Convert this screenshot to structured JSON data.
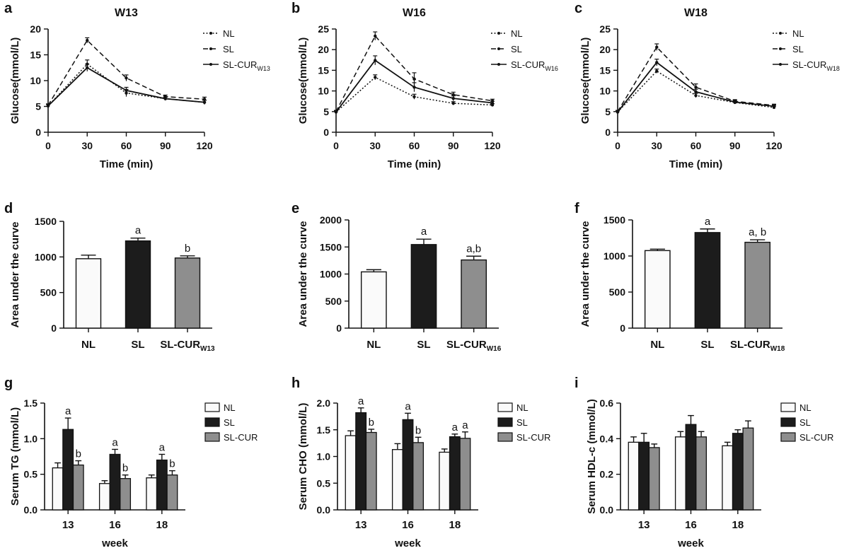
{
  "chart_data": [
    {
      "id": "a",
      "type": "line",
      "title": "W13",
      "xlabel": "Time (min)",
      "ylabel": "Glucose(mmol/L)",
      "x": [
        0,
        30,
        60,
        90,
        120
      ],
      "xlim": [
        0,
        120
      ],
      "ylim": [
        0,
        20
      ],
      "xticks": [
        "0",
        "30",
        "60",
        "90",
        "120"
      ],
      "yticks": [
        "0",
        "5",
        "10",
        "15",
        "20"
      ],
      "series": [
        {
          "name": "NL",
          "sub": "",
          "style": "dotted",
          "values": [
            5.1,
            13.2,
            7.6,
            6.5,
            5.8
          ],
          "err": [
            0.3,
            0.8,
            0.7,
            0.3,
            0.4
          ]
        },
        {
          "name": "SL",
          "sub": "",
          "style": "dashed",
          "values": [
            5.2,
            17.8,
            10.5,
            6.9,
            6.4
          ],
          "err": [
            0.3,
            0.5,
            0.6,
            0.3,
            0.4
          ]
        },
        {
          "name": "SL-CUR",
          "sub": "W13",
          "style": "solid",
          "values": [
            5.1,
            12.5,
            8.1,
            6.5,
            5.8
          ],
          "err": [
            0.3,
            0.7,
            0.6,
            0.3,
            0.4
          ]
        }
      ]
    },
    {
      "id": "b",
      "type": "line",
      "title": "W16",
      "xlabel": "Time (min)",
      "ylabel": "Glucose(mmol/L)",
      "x": [
        0,
        30,
        60,
        90,
        120
      ],
      "xlim": [
        0,
        120
      ],
      "ylim": [
        0,
        25
      ],
      "xticks": [
        "0",
        "30",
        "60",
        "90",
        "120"
      ],
      "yticks": [
        "0",
        "5",
        "10",
        "15",
        "20",
        "25"
      ],
      "series": [
        {
          "name": "NL",
          "sub": "",
          "style": "dotted",
          "values": [
            4.9,
            13.3,
            8.6,
            7.0,
            6.6
          ],
          "err": [
            0.3,
            0.6,
            0.6,
            0.4,
            0.3
          ]
        },
        {
          "name": "SL",
          "sub": "",
          "style": "dashed",
          "values": [
            5.0,
            23.3,
            12.9,
            9.1,
            7.6
          ],
          "err": [
            0.3,
            1.0,
            1.5,
            0.6,
            0.4
          ]
        },
        {
          "name": "SL-CUR",
          "sub": "W16",
          "style": "solid",
          "values": [
            4.9,
            17.4,
            10.9,
            8.2,
            7.1
          ],
          "err": [
            0.3,
            1.1,
            1.1,
            0.6,
            0.4
          ]
        }
      ]
    },
    {
      "id": "c",
      "type": "line",
      "title": "W18",
      "xlabel": "Time (min)",
      "ylabel": "Glucose(mmol/L)",
      "x": [
        0,
        30,
        60,
        90,
        120
      ],
      "xlim": [
        0,
        120
      ],
      "ylim": [
        0,
        25
      ],
      "xticks": [
        "0",
        "30",
        "60",
        "90",
        "120"
      ],
      "yticks": [
        "0",
        "5",
        "10",
        "15",
        "20",
        "25"
      ],
      "series": [
        {
          "name": "NL",
          "sub": "",
          "style": "dotted",
          "values": [
            4.9,
            14.8,
            8.9,
            7.2,
            6.0
          ],
          "err": [
            0.3,
            0.5,
            0.5,
            0.3,
            0.3
          ]
        },
        {
          "name": "SL",
          "sub": "",
          "style": "dashed",
          "values": [
            5.0,
            20.6,
            10.9,
            7.5,
            6.5
          ],
          "err": [
            0.3,
            0.8,
            0.8,
            0.4,
            0.3
          ]
        },
        {
          "name": "SL-CUR",
          "sub": "W18",
          "style": "solid",
          "values": [
            4.9,
            16.9,
            9.8,
            7.3,
            6.3
          ],
          "err": [
            0.3,
            0.8,
            0.6,
            0.4,
            0.3
          ]
        }
      ]
    },
    {
      "id": "d",
      "type": "bar",
      "title": "",
      "xlabel": "",
      "ylabel": "Area under the curve",
      "ylim": [
        0,
        1500
      ],
      "yticks": [
        "0",
        "500",
        "1000",
        "1500"
      ],
      "categories": [
        {
          "name": "NL",
          "sub": ""
        },
        {
          "name": "SL",
          "sub": ""
        },
        {
          "name": "SL-CUR",
          "sub": "W13"
        }
      ],
      "values": [
        975,
        1225,
        985
      ],
      "err": [
        50,
        40,
        30
      ],
      "annotations": [
        "",
        "a",
        "b"
      ],
      "colors": [
        "#fafafa",
        "#1c1c1c",
        "#8e8e8e"
      ]
    },
    {
      "id": "e",
      "type": "bar",
      "title": "",
      "xlabel": "",
      "ylabel": "Area under the curve",
      "ylim": [
        0,
        2000
      ],
      "yticks": [
        "0",
        "500",
        "1000",
        "1500",
        "2000"
      ],
      "categories": [
        {
          "name": "NL",
          "sub": ""
        },
        {
          "name": "SL",
          "sub": ""
        },
        {
          "name": "SL-CUR",
          "sub": "W16"
        }
      ],
      "values": [
        1040,
        1545,
        1260
      ],
      "err": [
        40,
        100,
        70
      ],
      "annotations": [
        "",
        "a",
        "a,b"
      ],
      "colors": [
        "#fafafa",
        "#1c1c1c",
        "#8e8e8e"
      ]
    },
    {
      "id": "f",
      "type": "bar",
      "title": "",
      "xlabel": "",
      "ylabel": "Area under the curve",
      "ylim": [
        0,
        1500
      ],
      "yticks": [
        "0",
        "500",
        "1000",
        "1500"
      ],
      "categories": [
        {
          "name": "NL",
          "sub": ""
        },
        {
          "name": "SL",
          "sub": ""
        },
        {
          "name": "SL-CUR",
          "sub": "W18"
        }
      ],
      "values": [
        1075,
        1325,
        1190
      ],
      "err": [
        20,
        50,
        35
      ],
      "annotations": [
        "",
        "a",
        "a, b"
      ],
      "colors": [
        "#fafafa",
        "#1c1c1c",
        "#8e8e8e"
      ]
    },
    {
      "id": "g",
      "type": "bar",
      "title": "",
      "xlabel": "week",
      "ylabel": "Serum TG (mmol/L)",
      "ylim": [
        0,
        1.5
      ],
      "yticks": [
        "0.0",
        "0.5",
        "1.0",
        "1.5"
      ],
      "categories": [
        "13",
        "16",
        "18"
      ],
      "series": [
        {
          "name": "NL",
          "values": [
            0.59,
            0.37,
            0.45
          ],
          "err": [
            0.07,
            0.04,
            0.04
          ],
          "annotations": [
            "",
            "",
            ""
          ],
          "color": "#fafafa"
        },
        {
          "name": "SL",
          "values": [
            1.13,
            0.78,
            0.7
          ],
          "err": [
            0.16,
            0.07,
            0.08
          ],
          "annotations": [
            "a",
            "a",
            "a"
          ],
          "color": "#1c1c1c"
        },
        {
          "name": "SL-CUR",
          "values": [
            0.63,
            0.44,
            0.49
          ],
          "err": [
            0.06,
            0.05,
            0.06
          ],
          "annotations": [
            "b",
            "b",
            "b"
          ],
          "color": "#8e8e8e"
        }
      ]
    },
    {
      "id": "h",
      "type": "bar",
      "title": "",
      "xlabel": "week",
      "ylabel": "Serum CHO (mmol/L)",
      "ylim": [
        0,
        2.0
      ],
      "yticks": [
        "0.0",
        "0.5",
        "1.0",
        "1.5",
        "2.0"
      ],
      "categories": [
        "13",
        "16",
        "18"
      ],
      "series": [
        {
          "name": "NL",
          "values": [
            1.39,
            1.13,
            1.08
          ],
          "err": [
            0.09,
            0.11,
            0.06
          ],
          "annotations": [
            "",
            "",
            ""
          ],
          "color": "#fafafa"
        },
        {
          "name": "SL",
          "values": [
            1.82,
            1.69,
            1.37
          ],
          "err": [
            0.09,
            0.12,
            0.05
          ],
          "annotations": [
            "a",
            "a",
            "a"
          ],
          "color": "#1c1c1c"
        },
        {
          "name": "SL-CUR",
          "values": [
            1.45,
            1.26,
            1.34
          ],
          "err": [
            0.06,
            0.1,
            0.12
          ],
          "annotations": [
            "b",
            "b",
            "a"
          ],
          "color": "#8e8e8e"
        }
      ]
    },
    {
      "id": "i",
      "type": "bar",
      "title": "",
      "xlabel": "week",
      "ylabel": "Serum HDL-c (mmol/L)",
      "ylim": [
        0,
        0.6
      ],
      "yticks": [
        "0.0",
        "0.2",
        "0.4",
        "0.6"
      ],
      "categories": [
        "13",
        "16",
        "18"
      ],
      "series": [
        {
          "name": "NL",
          "values": [
            0.38,
            0.41,
            0.36
          ],
          "err": [
            0.03,
            0.03,
            0.02
          ],
          "annotations": [
            "",
            "",
            ""
          ],
          "color": "#fafafa"
        },
        {
          "name": "SL",
          "values": [
            0.38,
            0.48,
            0.43
          ],
          "err": [
            0.05,
            0.05,
            0.02
          ],
          "annotations": [
            "",
            "",
            ""
          ],
          "color": "#1c1c1c"
        },
        {
          "name": "SL-CUR",
          "values": [
            0.35,
            0.41,
            0.46
          ],
          "err": [
            0.02,
            0.03,
            0.04
          ],
          "annotations": [
            "",
            "",
            ""
          ],
          "color": "#8e8e8e"
        }
      ]
    }
  ]
}
